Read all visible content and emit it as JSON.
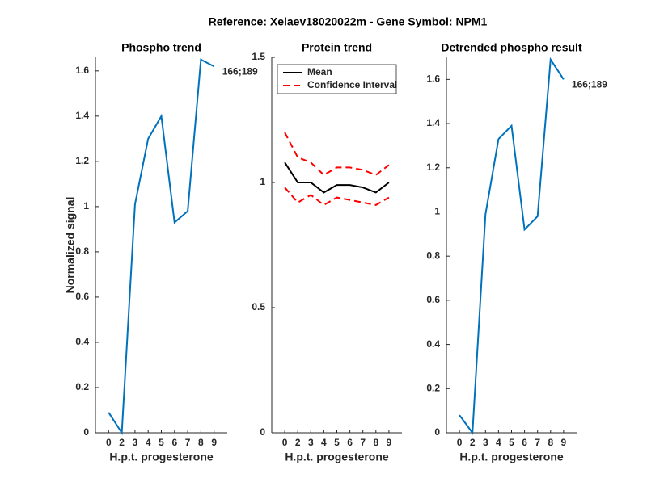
{
  "title": "Reference:  Xelaev18020022m - Gene Symbol:  NPM1",
  "chart_data": [
    {
      "type": "line",
      "title": "Phospho trend",
      "categories": [
        "0",
        "2",
        "3",
        "4",
        "5",
        "6",
        "7",
        "8",
        "9"
      ],
      "series": [
        {
          "color": "#0072bd",
          "values": [
            0.09,
            0.0,
            1.01,
            1.3,
            1.4,
            0.93,
            0.98,
            1.65,
            1.62
          ]
        }
      ],
      "ylim": [
        0,
        1.66
      ],
      "yticks": [
        0,
        0.2,
        0.4,
        0.6,
        0.8,
        1,
        1.2,
        1.4,
        1.6
      ],
      "xlabel": "H.p.t. progesterone",
      "ylabel": "Normalized signal",
      "annotation": "166;189"
    },
    {
      "type": "line",
      "title": "Protein trend",
      "categories": [
        "0",
        "2",
        "3",
        "4",
        "5",
        "6",
        "7",
        "8",
        "9"
      ],
      "series": [
        {
          "name": "Mean",
          "color": "#000000",
          "style": "solid",
          "values": [
            1.08,
            1.0,
            1.0,
            0.96,
            0.99,
            0.99,
            0.98,
            0.96,
            1.0
          ]
        },
        {
          "name": "Confidence Interval",
          "color": "#ff0000",
          "style": "dashed",
          "values": [
            1.2,
            1.1,
            1.08,
            1.03,
            1.06,
            1.06,
            1.05,
            1.03,
            1.07
          ],
          "lower": [
            0.98,
            0.92,
            0.95,
            0.91,
            0.94,
            0.93,
            0.92,
            0.91,
            0.94
          ]
        }
      ],
      "ylim": [
        0,
        1.5
      ],
      "yticks": [
        0,
        0.5,
        1,
        1.5
      ],
      "xlabel": "H.p.t. progesterone",
      "legend": "upper left"
    },
    {
      "type": "line",
      "title": "Detrended phospho result",
      "categories": [
        "0",
        "2",
        "3",
        "4",
        "5",
        "6",
        "7",
        "8",
        "9"
      ],
      "series": [
        {
          "color": "#0072bd",
          "values": [
            0.08,
            0.0,
            0.99,
            1.33,
            1.39,
            0.92,
            0.98,
            1.69,
            1.6
          ]
        }
      ],
      "ylim": [
        0,
        1.7
      ],
      "yticks": [
        0,
        0.2,
        0.4,
        0.6,
        0.8,
        1,
        1.2,
        1.4,
        1.6
      ],
      "xlabel": "H.p.t. progesterone",
      "annotation": "166;189"
    }
  ]
}
